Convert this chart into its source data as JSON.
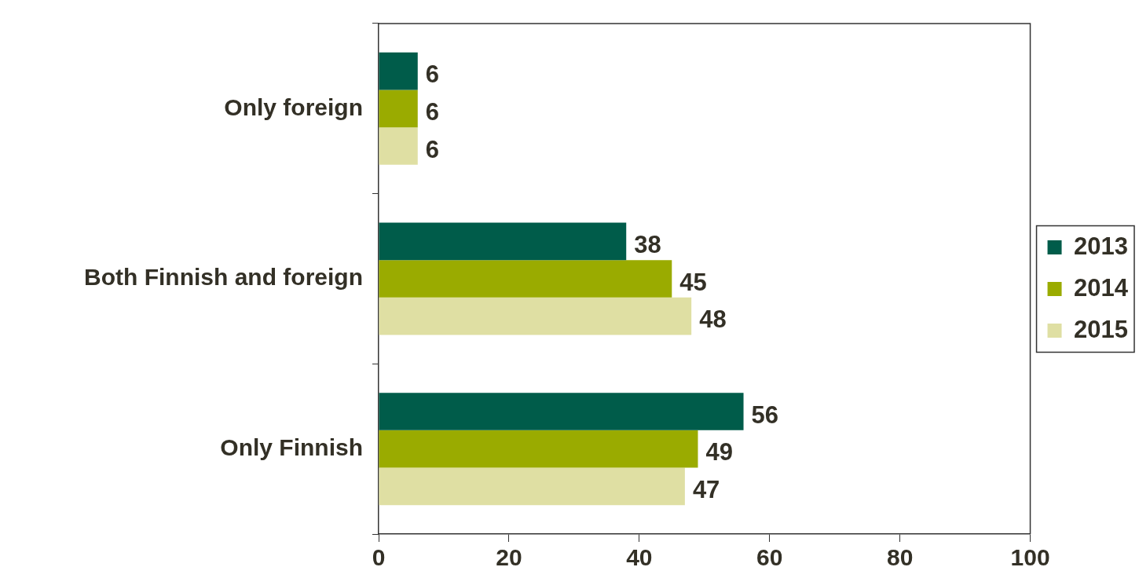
{
  "chart_data": {
    "type": "bar",
    "orientation": "horizontal",
    "categories": [
      "Only foreign",
      "Both Finnish and foreign",
      "Only Finnish"
    ],
    "series": [
      {
        "name": "2013",
        "color": "#005c4a",
        "values": [
          6,
          38,
          56
        ]
      },
      {
        "name": "2014",
        "color": "#9aab00",
        "values": [
          6,
          45,
          49
        ]
      },
      {
        "name": "2015",
        "color": "#dfdfa3",
        "values": [
          6,
          48,
          47
        ]
      }
    ],
    "xlim": [
      0,
      100
    ],
    "xticks": [
      0,
      20,
      40,
      60,
      80,
      100
    ],
    "data_labels": true,
    "legend": "right",
    "grid": false
  }
}
